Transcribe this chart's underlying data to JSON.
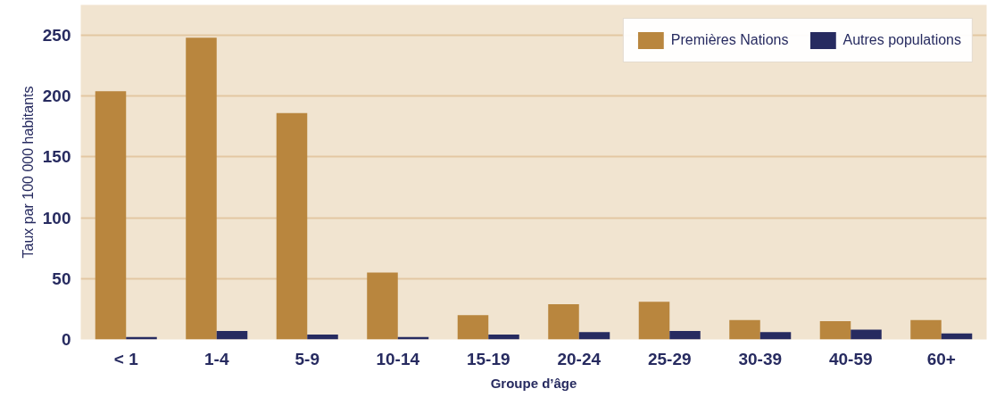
{
  "chart_data": {
    "type": "bar",
    "xlabel": "Groupe d’âge",
    "ylabel": "Taux par 100 000 habitants",
    "categories": [
      "< 1",
      "1-4",
      "5-9",
      "10-14",
      "15-19",
      "20-24",
      "25-29",
      "30-39",
      "40-59",
      "60+"
    ],
    "series": [
      {
        "name": "Premières Nations",
        "color": "#b9863e",
        "values": [
          204,
          248,
          186,
          55,
          20,
          29,
          31,
          16,
          15,
          16
        ]
      },
      {
        "name": "Autres populations",
        "color": "#272b60",
        "values": [
          2,
          7,
          4,
          2,
          4,
          6,
          7,
          6,
          8,
          5
        ]
      }
    ],
    "ylim": [
      0,
      275
    ],
    "yticks": [
      0,
      50,
      100,
      150,
      200,
      250
    ],
    "grid": "y",
    "legend": "top right"
  }
}
